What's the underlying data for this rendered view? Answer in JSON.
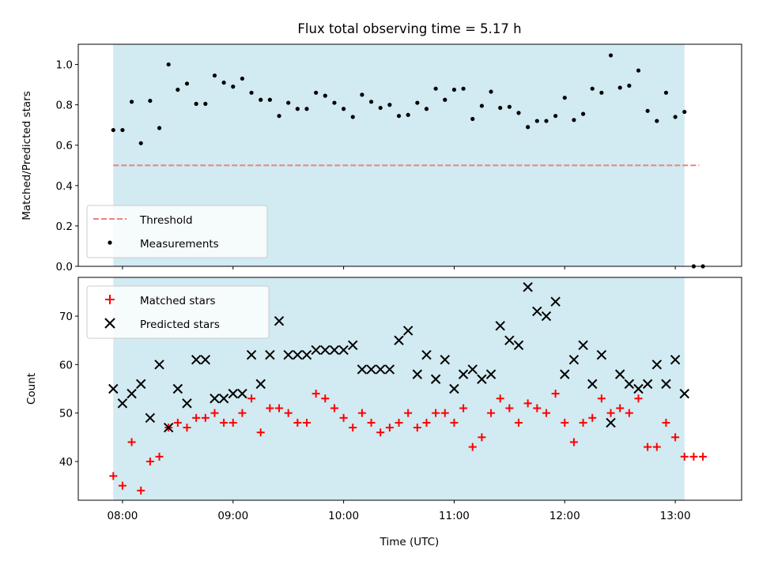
{
  "chart_data": [
    {
      "type": "scatter",
      "title": "Flux total observing time = 5.17 h",
      "xlabel": "",
      "ylabel": "Matched/Predicted stars",
      "ylim": [
        0,
        1.1
      ],
      "yticks": [
        "0.0",
        "0.2",
        "0.4",
        "0.6",
        "0.8",
        "1.0"
      ],
      "shaded_span": [
        "07:55",
        "13:05"
      ],
      "shade_color": "#add8e6",
      "threshold": {
        "name": "Threshold",
        "value": 0.5,
        "x_range": [
          "07:55",
          "13:13"
        ],
        "color": "#f08080"
      },
      "series": [
        {
          "name": "Measurements",
          "color": "#000000",
          "marker": "dot",
          "points": [
            [
              "07:55",
              0.675
            ],
            [
              "08:00",
              0.675
            ],
            [
              "08:05",
              0.815
            ],
            [
              "08:10",
              0.61
            ],
            [
              "08:15",
              0.82
            ],
            [
              "08:20",
              0.685
            ],
            [
              "08:25",
              1.0
            ],
            [
              "08:30",
              0.875
            ],
            [
              "08:35",
              0.905
            ],
            [
              "08:40",
              0.805
            ],
            [
              "08:45",
              0.805
            ],
            [
              "08:50",
              0.945
            ],
            [
              "08:55",
              0.91
            ],
            [
              "09:00",
              0.89
            ],
            [
              "09:05",
              0.93
            ],
            [
              "09:10",
              0.86
            ],
            [
              "09:15",
              0.825
            ],
            [
              "09:20",
              0.825
            ],
            [
              "09:25",
              0.745
            ],
            [
              "09:30",
              0.81
            ],
            [
              "09:35",
              0.78
            ],
            [
              "09:40",
              0.78
            ],
            [
              "09:45",
              0.86
            ],
            [
              "09:50",
              0.845
            ],
            [
              "09:55",
              0.81
            ],
            [
              "10:00",
              0.78
            ],
            [
              "10:05",
              0.74
            ],
            [
              "10:10",
              0.85
            ],
            [
              "10:15",
              0.815
            ],
            [
              "10:20",
              0.785
            ],
            [
              "10:25",
              0.8
            ],
            [
              "10:30",
              0.745
            ],
            [
              "10:35",
              0.75
            ],
            [
              "10:40",
              0.81
            ],
            [
              "10:45",
              0.78
            ],
            [
              "10:50",
              0.88
            ],
            [
              "10:55",
              0.825
            ],
            [
              "11:00",
              0.875
            ],
            [
              "11:05",
              0.88
            ],
            [
              "11:10",
              0.73
            ],
            [
              "11:15",
              0.795
            ],
            [
              "11:20",
              0.865
            ],
            [
              "11:25",
              0.785
            ],
            [
              "11:30",
              0.79
            ],
            [
              "11:35",
              0.76
            ],
            [
              "11:40",
              0.69
            ],
            [
              "11:45",
              0.72
            ],
            [
              "11:50",
              0.72
            ],
            [
              "11:55",
              0.745
            ],
            [
              "12:00",
              0.835
            ],
            [
              "12:05",
              0.725
            ],
            [
              "12:10",
              0.755
            ],
            [
              "12:15",
              0.88
            ],
            [
              "12:20",
              0.86
            ],
            [
              "12:25",
              1.045
            ],
            [
              "12:30",
              0.885
            ],
            [
              "12:35",
              0.895
            ],
            [
              "12:40",
              0.97
            ],
            [
              "12:45",
              0.77
            ],
            [
              "12:50",
              0.72
            ],
            [
              "12:55",
              0.86
            ],
            [
              "13:00",
              0.74
            ],
            [
              "13:05",
              0.765
            ],
            [
              "13:10",
              0.0
            ],
            [
              "13:15",
              0.0
            ]
          ]
        }
      ],
      "legend": {
        "position": "lower left",
        "entries": [
          "Threshold",
          "Measurements"
        ]
      }
    },
    {
      "type": "scatter",
      "title": "",
      "xlabel": "Time (UTC)",
      "ylabel": "Count",
      "ylim": [
        32,
        78
      ],
      "yticks": [
        "40",
        "50",
        "60",
        "70"
      ],
      "xlim": [
        "07:36",
        "13:36"
      ],
      "xticks": [
        "08:00",
        "09:00",
        "10:00",
        "11:00",
        "12:00",
        "13:00"
      ],
      "shaded_span": [
        "07:55",
        "13:05"
      ],
      "shade_color": "#add8e6",
      "series": [
        {
          "name": "Matched stars",
          "color": "#ff0000",
          "marker": "plus",
          "points": [
            [
              "07:55",
              37
            ],
            [
              "08:00",
              35
            ],
            [
              "08:05",
              44
            ],
            [
              "08:10",
              34
            ],
            [
              "08:15",
              40
            ],
            [
              "08:20",
              41
            ],
            [
              "08:25",
              47
            ],
            [
              "08:30",
              48
            ],
            [
              "08:35",
              47
            ],
            [
              "08:40",
              49
            ],
            [
              "08:45",
              49
            ],
            [
              "08:50",
              50
            ],
            [
              "08:55",
              48
            ],
            [
              "09:00",
              48
            ],
            [
              "09:05",
              50
            ],
            [
              "09:10",
              53
            ],
            [
              "09:15",
              46
            ],
            [
              "09:20",
              51
            ],
            [
              "09:25",
              51
            ],
            [
              "09:30",
              50
            ],
            [
              "09:35",
              48
            ],
            [
              "09:40",
              48
            ],
            [
              "09:45",
              54
            ],
            [
              "09:50",
              53
            ],
            [
              "09:55",
              51
            ],
            [
              "10:00",
              49
            ],
            [
              "10:05",
              47
            ],
            [
              "10:10",
              50
            ],
            [
              "10:15",
              48
            ],
            [
              "10:20",
              46
            ],
            [
              "10:25",
              47
            ],
            [
              "10:30",
              48
            ],
            [
              "10:35",
              50
            ],
            [
              "10:40",
              47
            ],
            [
              "10:45",
              48
            ],
            [
              "10:50",
              50
            ],
            [
              "10:55",
              50
            ],
            [
              "11:00",
              48
            ],
            [
              "11:05",
              51
            ],
            [
              "11:10",
              43
            ],
            [
              "11:15",
              45
            ],
            [
              "11:20",
              50
            ],
            [
              "11:25",
              53
            ],
            [
              "11:30",
              51
            ],
            [
              "11:35",
              48
            ],
            [
              "11:40",
              52
            ],
            [
              "11:45",
              51
            ],
            [
              "11:50",
              50
            ],
            [
              "11:55",
              54
            ],
            [
              "12:00",
              48
            ],
            [
              "12:05",
              44
            ],
            [
              "12:10",
              48
            ],
            [
              "12:15",
              49
            ],
            [
              "12:20",
              53
            ],
            [
              "12:25",
              50
            ],
            [
              "12:30",
              51
            ],
            [
              "12:35",
              50
            ],
            [
              "12:40",
              53
            ],
            [
              "12:45",
              43
            ],
            [
              "12:50",
              43
            ],
            [
              "12:55",
              48
            ],
            [
              "13:00",
              45
            ],
            [
              "13:05",
              41
            ],
            [
              "13:10",
              41
            ],
            [
              "13:15",
              41
            ]
          ]
        },
        {
          "name": "Predicted stars",
          "color": "#000000",
          "marker": "x",
          "points": [
            [
              "07:55",
              55
            ],
            [
              "08:00",
              52
            ],
            [
              "08:05",
              54
            ],
            [
              "08:10",
              56
            ],
            [
              "08:15",
              49
            ],
            [
              "08:20",
              60
            ],
            [
              "08:25",
              47
            ],
            [
              "08:30",
              55
            ],
            [
              "08:35",
              52
            ],
            [
              "08:40",
              61
            ],
            [
              "08:45",
              61
            ],
            [
              "08:50",
              53
            ],
            [
              "08:55",
              53
            ],
            [
              "09:00",
              54
            ],
            [
              "09:05",
              54
            ],
            [
              "09:10",
              62
            ],
            [
              "09:15",
              56
            ],
            [
              "09:20",
              62
            ],
            [
              "09:25",
              69
            ],
            [
              "09:30",
              62
            ],
            [
              "09:35",
              62
            ],
            [
              "09:40",
              62
            ],
            [
              "09:45",
              63
            ],
            [
              "09:50",
              63
            ],
            [
              "09:55",
              63
            ],
            [
              "10:00",
              63
            ],
            [
              "10:05",
              64
            ],
            [
              "10:10",
              59
            ],
            [
              "10:15",
              59
            ],
            [
              "10:20",
              59
            ],
            [
              "10:25",
              59
            ],
            [
              "10:30",
              65
            ],
            [
              "10:35",
              67
            ],
            [
              "10:40",
              58
            ],
            [
              "10:45",
              62
            ],
            [
              "10:50",
              57
            ],
            [
              "10:55",
              61
            ],
            [
              "11:00",
              55
            ],
            [
              "11:05",
              58
            ],
            [
              "11:10",
              59
            ],
            [
              "11:15",
              57
            ],
            [
              "11:20",
              58
            ],
            [
              "11:25",
              68
            ],
            [
              "11:30",
              65
            ],
            [
              "11:35",
              64
            ],
            [
              "11:40",
              76
            ],
            [
              "11:45",
              71
            ],
            [
              "11:50",
              70
            ],
            [
              "11:55",
              73
            ],
            [
              "12:00",
              58
            ],
            [
              "12:05",
              61
            ],
            [
              "12:10",
              64
            ],
            [
              "12:15",
              56
            ],
            [
              "12:20",
              62
            ],
            [
              "12:25",
              48
            ],
            [
              "12:30",
              58
            ],
            [
              "12:35",
              56
            ],
            [
              "12:40",
              55
            ],
            [
              "12:45",
              56
            ],
            [
              "12:50",
              60
            ],
            [
              "12:55",
              56
            ],
            [
              "13:00",
              61
            ],
            [
              "13:05",
              54
            ]
          ]
        }
      ],
      "legend": {
        "position": "upper left",
        "entries": [
          "Matched stars",
          "Predicted stars"
        ]
      }
    }
  ]
}
